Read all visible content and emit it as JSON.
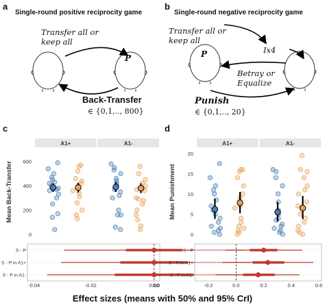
{
  "panel_a": {
    "label": "a",
    "title": "Single-round positive reciprocity game",
    "transfer_text": [
      "Transfer all or",
      "keep all"
    ],
    "p_label": "P",
    "back_transfer_label": "Back-Transfer",
    "back_transfer_set": "∈ {0,1,.., 800}"
  },
  "panel_b": {
    "label": "b",
    "title": "Single-round negative reciprocity game",
    "transfer_text": [
      "Transfer all or",
      "keep all"
    ],
    "p_label": "P",
    "ix4_label": "Ix4",
    "betray_text": [
      "Betray or",
      "Equalize"
    ],
    "punish_label": "Punish",
    "punish_set": "∈ {0,1,.., 20}"
  },
  "panel_c": {
    "label": "c"
  },
  "panel_d": {
    "label": "d"
  },
  "bottom_title": "Effect sizes (means with 50% and 95% CrI)",
  "colors": {
    "blue": "#4a7fb8",
    "orange": "#e8a35a",
    "red": "#c0392b",
    "strip": "#e6e6e6"
  },
  "chart_data": [
    {
      "type": "scatter",
      "title": "",
      "ylabel": "Mean Back-Transfer",
      "facets": [
        "A1+",
        "A1-"
      ],
      "ylim": [
        0,
        700
      ],
      "yticks": [
        "0",
        "200",
        "400",
        "600"
      ],
      "series_by_facet": [
        {
          "blue": {
            "mean": 385,
            "ci": [
              350,
              420
            ],
            "points": [
              590,
              540,
              500,
              470,
              450,
              430,
              420,
              400,
              390,
              380,
              370,
              360,
              330,
              300,
              250,
              170,
              140,
              40
            ]
          },
          "orange": {
            "mean": 385,
            "ci": [
              345,
              425
            ],
            "points": [
              570,
              560,
              520,
              460,
              440,
              420,
              400,
              390,
              380,
              360,
              340,
              310,
              260,
              200,
              160,
              130
            ]
          }
        },
        {
          "blue": {
            "mean": 390,
            "ci": [
              350,
              430
            ],
            "points": [
              580,
              550,
              530,
              500,
              460,
              440,
              420,
              400,
              390,
              370,
              350,
              320,
              300,
              200,
              160,
              160,
              60,
              40
            ]
          },
          "orange": {
            "mean": 380,
            "ci": [
              340,
              420
            ],
            "points": [
              560,
              500,
              450,
              420,
              400,
              380,
              370,
              360,
              300,
              290,
              280,
              250,
              200,
              160,
              120,
              70,
              40
            ]
          }
        }
      ]
    },
    {
      "type": "scatter",
      "title": "",
      "ylabel": "Mean Punishment",
      "facets": [
        "A1+",
        "A1-"
      ],
      "ylim": [
        0,
        21
      ],
      "yticks": [
        "0",
        "5",
        "10",
        "15",
        "20"
      ],
      "series_by_facet": [
        {
          "blue": {
            "mean": 6.2,
            "ci": [
              3.8,
              8.8
            ],
            "points": [
              17.5,
              14,
              12,
              11,
              10,
              8.5,
              7,
              6,
              5,
              4,
              3,
              2,
              1.5,
              1,
              0.5,
              0
            ]
          },
          "orange": {
            "mean": 7.8,
            "ci": [
              5.2,
              10.5
            ],
            "points": [
              16,
              16,
              15.5,
              14,
              12,
              10,
              9,
              8,
              7,
              6.5,
              4,
              3,
              2,
              1.5,
              1,
              0.5,
              0
            ]
          }
        },
        {
          "blue": {
            "mean": 5.5,
            "ci": [
              3.2,
              8.0
            ],
            "points": [
              16,
              15.5,
              14,
              12,
              10,
              8,
              6,
              5,
              4,
              3.5,
              2.5,
              2,
              1.5,
              1,
              0.5,
              0
            ]
          },
          "orange": {
            "mean": 6.5,
            "ci": [
              3.8,
              9.5
            ],
            "points": [
              19.5,
              16,
              15.5,
              14,
              12,
              11,
              10,
              8,
              7,
              5,
              4,
              3,
              2,
              1,
              0.5,
              0
            ]
          }
        }
      ]
    },
    {
      "type": "scatter",
      "title": "",
      "categories": [
        "S - P",
        "S - P in A1+",
        "S - P in A1-"
      ],
      "xlim": [
        -0.045,
        0.002
      ],
      "xticks": [
        "-0.04",
        "-0.02",
        "0.00",
        "0.0"
      ],
      "rows": [
        {
          "mean": 0.0,
          "ci50": [
            -0.01,
            0.01
          ],
          "ci95": [
            -0.032,
            0.032
          ]
        },
        {
          "mean": 0.0,
          "ci50": [
            -0.012,
            0.012
          ],
          "ci95": [
            -0.033,
            0.034
          ]
        },
        {
          "mean": 0.0,
          "ci50": [
            -0.014,
            0.014
          ],
          "ci95": [
            -0.038,
            0.038
          ]
        }
      ]
    },
    {
      "type": "scatter",
      "title": "",
      "categories": [
        "S - P",
        "S - P in A1+",
        "S - P in A1-"
      ],
      "xlim": [
        -0.3,
        0.62
      ],
      "xticks": [
        "-0.2",
        "0.0",
        "0.2",
        "0.4",
        "0.6"
      ],
      "rows": [
        {
          "mean": 0.2,
          "ci50": [
            0.1,
            0.3
          ],
          "ci95": [
            -0.08,
            0.48
          ]
        },
        {
          "mean": 0.23,
          "ci50": [
            0.12,
            0.35
          ],
          "ci95": [
            -0.1,
            0.56
          ]
        },
        {
          "mean": 0.16,
          "ci50": [
            0.05,
            0.28
          ],
          "ci95": [
            -0.15,
            0.46
          ]
        }
      ]
    }
  ]
}
